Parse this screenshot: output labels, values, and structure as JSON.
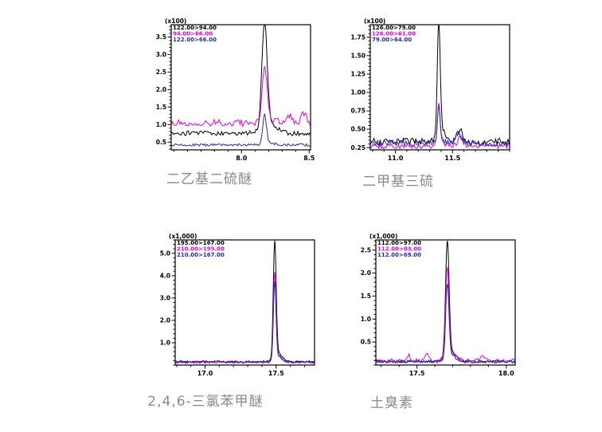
{
  "page": {
    "background": "#ffffff"
  },
  "colors": {
    "trace_black": "#000000",
    "trace_magenta": "#e800e8",
    "trace_blue": "#2828b8",
    "axis": "#000000",
    "caption_gray": "#8a8a8a"
  },
  "chart_data": [
    {
      "type": "line",
      "title": "二乙基二硫醚",
      "scale_label": "(x100)",
      "x_axis": {
        "min": 7.48,
        "max": 8.51,
        "minor_step": 0.1,
        "ticks": [
          {
            "v": 8.0,
            "label": "8.0"
          },
          {
            "v": 8.5,
            "label": "8.5"
          }
        ]
      },
      "y_axis": {
        "min": 0.28,
        "max": 3.85,
        "minor_step": 0.1,
        "ticks": [
          {
            "v": 0.5,
            "label": "0.5"
          },
          {
            "v": 1.0,
            "label": "1.0"
          },
          {
            "v": 1.5,
            "label": "1.5"
          },
          {
            "v": 2.0,
            "label": "2.0"
          },
          {
            "v": 2.5,
            "label": "2.5"
          },
          {
            "v": 3.0,
            "label": "3.0"
          },
          {
            "v": 3.5,
            "label": "3.5"
          }
        ]
      },
      "peak_rt": 8.17,
      "series": [
        {
          "name": "122.00>94.00",
          "color": "#000000",
          "baseline": 0.75,
          "noise": 0.07,
          "peak_height": 3.72,
          "peak_sigma": 0.02
        },
        {
          "name": "94.00>66.00",
          "color": "#e800e8",
          "baseline": 1.05,
          "noise": 0.1,
          "peak_height": 2.6,
          "peak_sigma": 0.018,
          "minor_peaks": [
            {
              "x": 8.35,
              "h": 0.22,
              "s": 0.025
            },
            {
              "x": 8.46,
              "h": 0.25,
              "s": 0.02
            }
          ]
        },
        {
          "name": "122.00>66.00",
          "color": "#2828b8",
          "baseline": 0.42,
          "noise": 0.035,
          "peak_height": 1.22,
          "peak_sigma": 0.014
        }
      ]
    },
    {
      "type": "line",
      "title": "二甲基三硫",
      "scale_label": "(x100)",
      "x_axis": {
        "min": 10.78,
        "max": 12.0,
        "minor_step": 0.1,
        "ticks": [
          {
            "v": 11.0,
            "label": "11.0"
          },
          {
            "v": 11.5,
            "label": "11.5"
          }
        ]
      },
      "y_axis": {
        "min": 0.22,
        "max": 1.92,
        "minor_step": 0.05,
        "ticks": [
          {
            "v": 0.25,
            "label": "0.25"
          },
          {
            "v": 0.5,
            "label": "0.50"
          },
          {
            "v": 0.75,
            "label": "0.75"
          },
          {
            "v": 1.0,
            "label": "1.00"
          },
          {
            "v": 1.25,
            "label": "1.25"
          },
          {
            "v": 1.5,
            "label": "1.50"
          },
          {
            "v": 1.75,
            "label": "1.75"
          }
        ]
      },
      "peak_rt": 11.38,
      "series": [
        {
          "name": "126.00>79.00",
          "color": "#000000",
          "baseline": 0.33,
          "noise": 0.05,
          "peak_height": 1.87,
          "peak_sigma": 0.013,
          "minor_peaks": [
            {
              "x": 11.56,
              "h": 0.16,
              "s": 0.025
            }
          ]
        },
        {
          "name": "126.00>61.00",
          "color": "#e800e8",
          "baseline": 0.27,
          "noise": 0.035,
          "peak_height": 0.82,
          "peak_sigma": 0.012,
          "minor_peaks": [
            {
              "x": 11.57,
              "h": 0.12,
              "s": 0.025
            }
          ]
        },
        {
          "name": "79.00>64.00",
          "color": "#2828b8",
          "baseline": 0.31,
          "noise": 0.04,
          "peak_height": 0.78,
          "peak_sigma": 0.012,
          "minor_peaks": [
            {
              "x": 11.55,
              "h": 0.14,
              "s": 0.025
            }
          ]
        }
      ]
    },
    {
      "type": "line",
      "title": "2,4,6-三氯苯甲醚",
      "scale_label": "(x1,000)",
      "x_axis": {
        "min": 16.79,
        "max": 17.77,
        "minor_step": 0.1,
        "ticks": [
          {
            "v": 17.0,
            "label": "17.0"
          },
          {
            "v": 17.5,
            "label": "17.5"
          }
        ]
      },
      "y_axis": {
        "min": 0.0,
        "max": 5.6,
        "minor_step": 0.2,
        "ticks": [
          {
            "v": 1.0,
            "label": "1.0"
          },
          {
            "v": 2.0,
            "label": "2.0"
          },
          {
            "v": 3.0,
            "label": "3.0"
          },
          {
            "v": 4.0,
            "label": "4.0"
          },
          {
            "v": 5.0,
            "label": "5.0"
          }
        ]
      },
      "peak_rt": 17.49,
      "series": [
        {
          "name": "195.00>167.00",
          "color": "#000000",
          "baseline": 0.15,
          "noise": 0.04,
          "peak_height": 5.3,
          "peak_sigma": 0.01
        },
        {
          "name": "210.00>195.00",
          "color": "#e800e8",
          "baseline": 0.12,
          "noise": 0.05,
          "peak_height": 3.9,
          "peak_sigma": 0.0095
        },
        {
          "name": "210.00>167.00",
          "color": "#2828b8",
          "baseline": 0.14,
          "noise": 0.04,
          "peak_height": 3.55,
          "peak_sigma": 0.009
        }
      ]
    },
    {
      "type": "line",
      "title": "土臭素",
      "scale_label": "(x1,000)",
      "x_axis": {
        "min": 17.27,
        "max": 18.05,
        "minor_step": 0.1,
        "ticks": [
          {
            "v": 17.5,
            "label": "17.5"
          },
          {
            "v": 18.0,
            "label": "18.0"
          }
        ]
      },
      "y_axis": {
        "min": 0.0,
        "max": 2.72,
        "minor_step": 0.1,
        "ticks": [
          {
            "v": 0.5,
            "label": "0.5"
          },
          {
            "v": 1.0,
            "label": "1.0"
          },
          {
            "v": 1.5,
            "label": "1.5"
          },
          {
            "v": 2.0,
            "label": "2.0"
          },
          {
            "v": 2.5,
            "label": "2.5"
          }
        ]
      },
      "peak_rt": 17.67,
      "series": [
        {
          "name": "112.00>97.00",
          "color": "#000000",
          "baseline": 0.07,
          "noise": 0.025,
          "peak_height": 2.55,
          "peak_sigma": 0.01
        },
        {
          "name": "112.00>83.00",
          "color": "#e800e8",
          "baseline": 0.09,
          "noise": 0.05,
          "peak_height": 2.02,
          "peak_sigma": 0.0095,
          "minor_peaks": [
            {
              "x": 17.45,
              "h": 0.13,
              "s": 0.012
            },
            {
              "x": 17.56,
              "h": 0.16,
              "s": 0.01
            },
            {
              "x": 17.87,
              "h": 0.11,
              "s": 0.012
            }
          ]
        },
        {
          "name": "112.00>69.00",
          "color": "#2828b8",
          "baseline": 0.08,
          "noise": 0.03,
          "peak_height": 1.68,
          "peak_sigma": 0.009
        }
      ]
    }
  ]
}
